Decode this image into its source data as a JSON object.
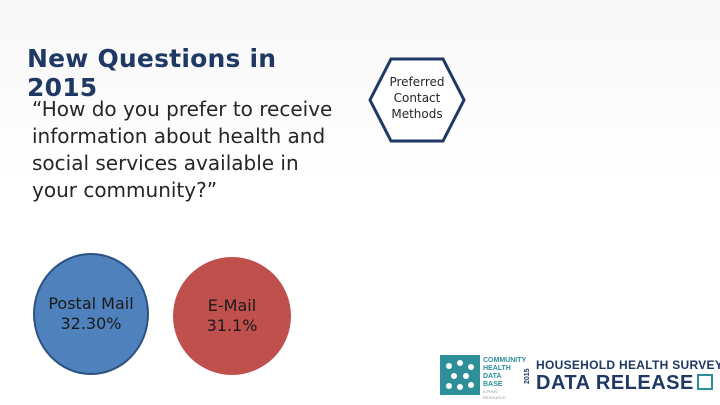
{
  "slide": {
    "title": "New Questions in 2015",
    "question": "“How do you prefer to receive information about health and social services available in your community?”"
  },
  "hexagon": {
    "lines": [
      "Preferred",
      "Contact",
      "Methods"
    ],
    "fill": "#ffffff",
    "border_color": "#1f3864"
  },
  "bubbles": [
    {
      "label": "Postal Mail",
      "value": "32.30%",
      "color": "#4f81bd"
    },
    {
      "label": "E-Mail",
      "value": "31.1%",
      "color": "#c0504d"
    }
  ],
  "logo": {
    "org_lines": [
      "COMMUNITY",
      "HEALTH",
      "DATA BASE"
    ],
    "org_sub": "A PHMC RESOURCE",
    "year": "2015",
    "line1": "HOUSEHOLD HEALTH SURVEY",
    "line2": "DATA RELEASE",
    "accent_color": "#2e8f9a",
    "dark_color": "#1f3864"
  }
}
